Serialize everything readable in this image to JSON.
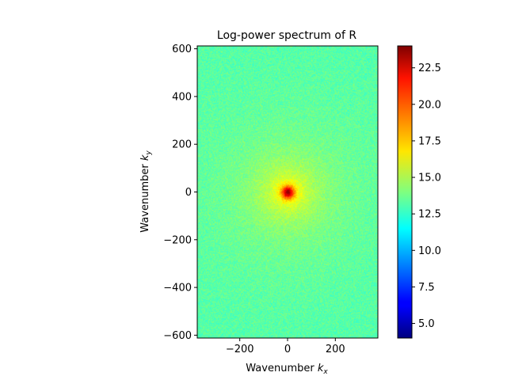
{
  "chart_data": {
    "type": "heatmap",
    "title": "Log-power spectrum of R",
    "xlabel_main": "Wavenumber ",
    "xlabel_var": "k",
    "xlabel_sub": "x",
    "ylabel_main": "Wavenumber ",
    "ylabel_var": "k",
    "ylabel_sub": "y",
    "xlim": [
      -378,
      378
    ],
    "ylim": [
      -612,
      612
    ],
    "xticks": [
      -200,
      0,
      200
    ],
    "xtick_labels": [
      "−200",
      "0",
      "200"
    ],
    "yticks": [
      -600,
      -400,
      -200,
      0,
      200,
      400,
      600
    ],
    "ytick_labels": [
      "−600",
      "−400",
      "−200",
      "0",
      "200",
      "400",
      "600"
    ],
    "colorbar": {
      "colormap": "jet",
      "vmin": 4.0,
      "vmax": 24.0,
      "ticks": [
        5.0,
        7.5,
        10.0,
        12.5,
        15.0,
        17.5,
        20.0,
        22.5
      ],
      "tick_labels": [
        "5.0",
        "7.5",
        "10.0",
        "12.5",
        "15.0",
        "17.5",
        "20.0",
        "22.5"
      ]
    },
    "field": {
      "background_level": 13.1,
      "peak_level": 24.0,
      "peak_location": [
        0,
        0
      ]
    },
    "grid": false
  }
}
